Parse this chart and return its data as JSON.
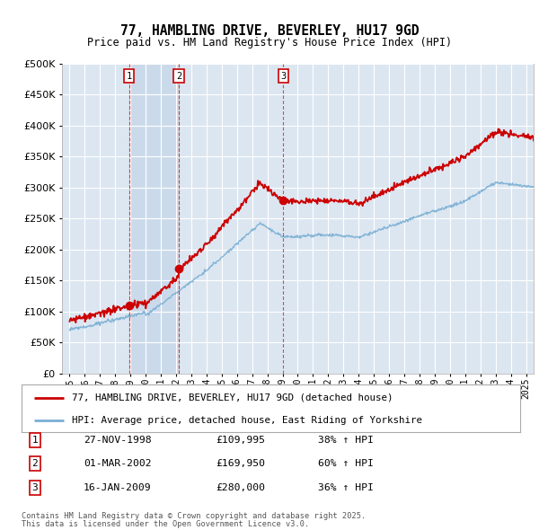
{
  "title": "77, HAMBLING DRIVE, BEVERLEY, HU17 9GD",
  "subtitle": "Price paid vs. HM Land Registry's House Price Index (HPI)",
  "legend_line1": "77, HAMBLING DRIVE, BEVERLEY, HU17 9GD (detached house)",
  "legend_line2": "HPI: Average price, detached house, East Riding of Yorkshire",
  "footer_line1": "Contains HM Land Registry data © Crown copyright and database right 2025.",
  "footer_line2": "This data is licensed under the Open Government Licence v3.0.",
  "sale_dates": [
    1998.91,
    2002.17,
    2009.04
  ],
  "sale_prices": [
    109995,
    169950,
    280000
  ],
  "sale_labels": [
    "1",
    "2",
    "3"
  ],
  "row_data": [
    [
      "1",
      "27-NOV-1998",
      "£109,995",
      "38% ↑ HPI"
    ],
    [
      "2",
      "01-MAR-2002",
      "£169,950",
      "60% ↑ HPI"
    ],
    [
      "3",
      "16-JAN-2009",
      "£280,000",
      "36% ↑ HPI"
    ]
  ],
  "ylim": [
    0,
    500000
  ],
  "yticks": [
    0,
    50000,
    100000,
    150000,
    200000,
    250000,
    300000,
    350000,
    400000,
    450000,
    500000
  ],
  "xlim_start": 1994.5,
  "xlim_end": 2025.5,
  "plot_bg_color": "#dce6f1",
  "red_color": "#cc0000",
  "blue_color": "#7aafd4",
  "grid_color": "#ffffff",
  "shade_color": "#ccd9ea",
  "box_color": "#cc0000"
}
